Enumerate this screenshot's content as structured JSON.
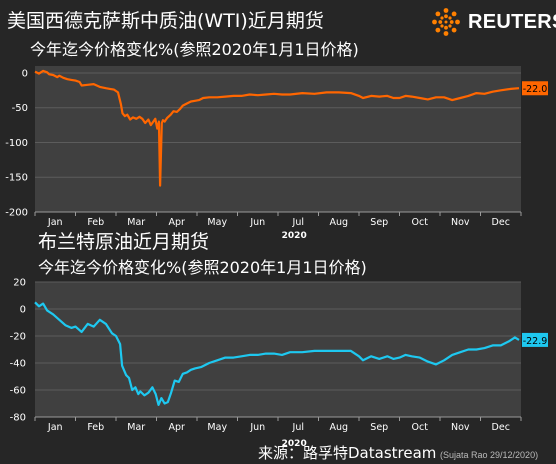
{
  "header": {
    "title_wti": "美国西德克萨斯中质油(WTI)近月期货",
    "subtitle_wti": "今年迄今价格变化%(参照2020年1月1日价格)",
    "title_brent": "布兰特原油近月期货",
    "subtitle_brent": "今年迄今价格变化%(参照2020年1月1日价格)",
    "logo_text": "REUTERS"
  },
  "footer": {
    "source": "来源：路孚特Datastream",
    "credit": "(Sujata Rao 29/12/2020)"
  },
  "colors": {
    "background": "#262626",
    "wti_line": "#ff6600",
    "brent_line": "#1ec8f0",
    "logo_accent": "#ff8000"
  },
  "chart_data": [
    {
      "type": "line",
      "title": "美国西德克萨斯中质油(WTI)近月期货",
      "subtitle": "今年迄今价格变化%(参照2020年1月1日价格)",
      "x_tick_labels": [
        "Jan",
        "Feb",
        "Mar",
        "Apr",
        "May",
        "Jun",
        "Jul",
        "Aug",
        "Sep",
        "Oct",
        "Nov",
        "Dec"
      ],
      "year_label": "2020",
      "y_ticks": [
        0,
        -50,
        -100,
        -150,
        -200
      ],
      "ylim": [
        -200,
        10
      ],
      "grid": "horizontal",
      "end_label": "-22.0",
      "series": [
        {
          "x": [
            0,
            0.1,
            0.2,
            0.3,
            0.35,
            0.45,
            0.55,
            0.6,
            0.7,
            0.8,
            0.9,
            1.0,
            1.1,
            1.15,
            1.3,
            1.45,
            1.6,
            1.75,
            1.85,
            1.95,
            2.05,
            2.12,
            2.16,
            2.22,
            2.28,
            2.35,
            2.42,
            2.5,
            2.58,
            2.65,
            2.72,
            2.8,
            2.86,
            2.92,
            2.97,
            3.02,
            3.06,
            3.09,
            3.13,
            3.16,
            3.2,
            3.26,
            3.35,
            3.42,
            3.5,
            3.58,
            3.65,
            3.75,
            3.85,
            3.95,
            4.05,
            4.15,
            4.3,
            4.5,
            4.7,
            4.9,
            5.1,
            5.3,
            5.5,
            5.7,
            5.9,
            6.1,
            6.3,
            6.6,
            6.9,
            7.2,
            7.5,
            7.8,
            8.0,
            8.1,
            8.3,
            8.5,
            8.7,
            8.85,
            9.0,
            9.15,
            9.3,
            9.5,
            9.7,
            9.9,
            10.1,
            10.3,
            10.5,
            10.7,
            10.9,
            11.1,
            11.3,
            11.5,
            11.75,
            11.95
          ],
          "y": [
            2,
            -1,
            3,
            1,
            -2,
            -3,
            -6,
            -4,
            -7,
            -9,
            -10,
            -11,
            -13,
            -18,
            -17,
            -16,
            -20,
            -22,
            -23,
            -24,
            -28,
            -45,
            -58,
            -62,
            -60,
            -67,
            -64,
            -66,
            -63,
            -66,
            -72,
            -67,
            -75,
            -70,
            -66,
            -80,
            -70,
            -162,
            -72,
            -68,
            -70,
            -65,
            -60,
            -55,
            -56,
            -52,
            -47,
            -44,
            -41,
            -40,
            -39,
            -36,
            -35,
            -35,
            -34,
            -33,
            -33,
            -31,
            -32,
            -31,
            -30,
            -31,
            -31,
            -29,
            -30,
            -28,
            -28,
            -29,
            -33,
            -36,
            -33,
            -34,
            -33,
            -36,
            -36,
            -33,
            -34,
            -36,
            -38,
            -35,
            -35,
            -39,
            -36,
            -33,
            -29,
            -30,
            -27,
            -25,
            -23,
            -22
          ]
        }
      ]
    },
    {
      "type": "line",
      "title": "布兰特原油近月期货",
      "subtitle": "今年迄今价格变化%(参照2020年1月1日价格)",
      "x_tick_labels": [
        "Jan",
        "Feb",
        "Mar",
        "Apr",
        "May",
        "Jun",
        "Jul",
        "Aug",
        "Sep",
        "Oct",
        "Nov",
        "Dec"
      ],
      "year_label": "2020",
      "y_ticks": [
        20,
        0,
        -20,
        -40,
        -60,
        -80
      ],
      "ylim": [
        -80,
        20
      ],
      "grid": "horizontal",
      "end_label": "-22.9",
      "series": [
        {
          "x": [
            0,
            0.1,
            0.2,
            0.3,
            0.45,
            0.6,
            0.75,
            0.9,
            1.0,
            1.15,
            1.3,
            1.45,
            1.6,
            1.75,
            1.9,
            2.0,
            2.1,
            2.15,
            2.25,
            2.32,
            2.4,
            2.48,
            2.55,
            2.6,
            2.7,
            2.8,
            2.9,
            2.98,
            3.05,
            3.12,
            3.2,
            3.28,
            3.36,
            3.45,
            3.55,
            3.65,
            3.75,
            3.85,
            3.95,
            4.1,
            4.3,
            4.5,
            4.7,
            4.9,
            5.1,
            5.3,
            5.5,
            5.7,
            5.9,
            6.1,
            6.3,
            6.6,
            6.9,
            7.2,
            7.5,
            7.8,
            8.0,
            8.1,
            8.3,
            8.5,
            8.7,
            8.85,
            9.0,
            9.15,
            9.3,
            9.5,
            9.7,
            9.9,
            10.1,
            10.3,
            10.5,
            10.7,
            10.9,
            11.1,
            11.3,
            11.5,
            11.7,
            11.85,
            11.95
          ],
          "y": [
            5,
            2,
            4,
            -1,
            -4,
            -8,
            -12,
            -14,
            -13,
            -17,
            -11,
            -13,
            -8,
            -11,
            -18,
            -20,
            -26,
            -42,
            -49,
            -51,
            -60,
            -58,
            -63,
            -61,
            -64,
            -62,
            -58,
            -63,
            -71,
            -66,
            -70,
            -69,
            -62,
            -53,
            -54,
            -48,
            -47,
            -45,
            -44,
            -43,
            -40,
            -38,
            -36,
            -36,
            -35,
            -34,
            -34,
            -33,
            -33,
            -34,
            -32,
            -32,
            -31,
            -31,
            -31,
            -31,
            -35,
            -38,
            -35,
            -37,
            -35,
            -37,
            -36,
            -34,
            -35,
            -36,
            -39,
            -41,
            -38,
            -34,
            -32,
            -30,
            -30,
            -29,
            -27,
            -27,
            -24,
            -21,
            -22.9
          ]
        }
      ]
    }
  ]
}
